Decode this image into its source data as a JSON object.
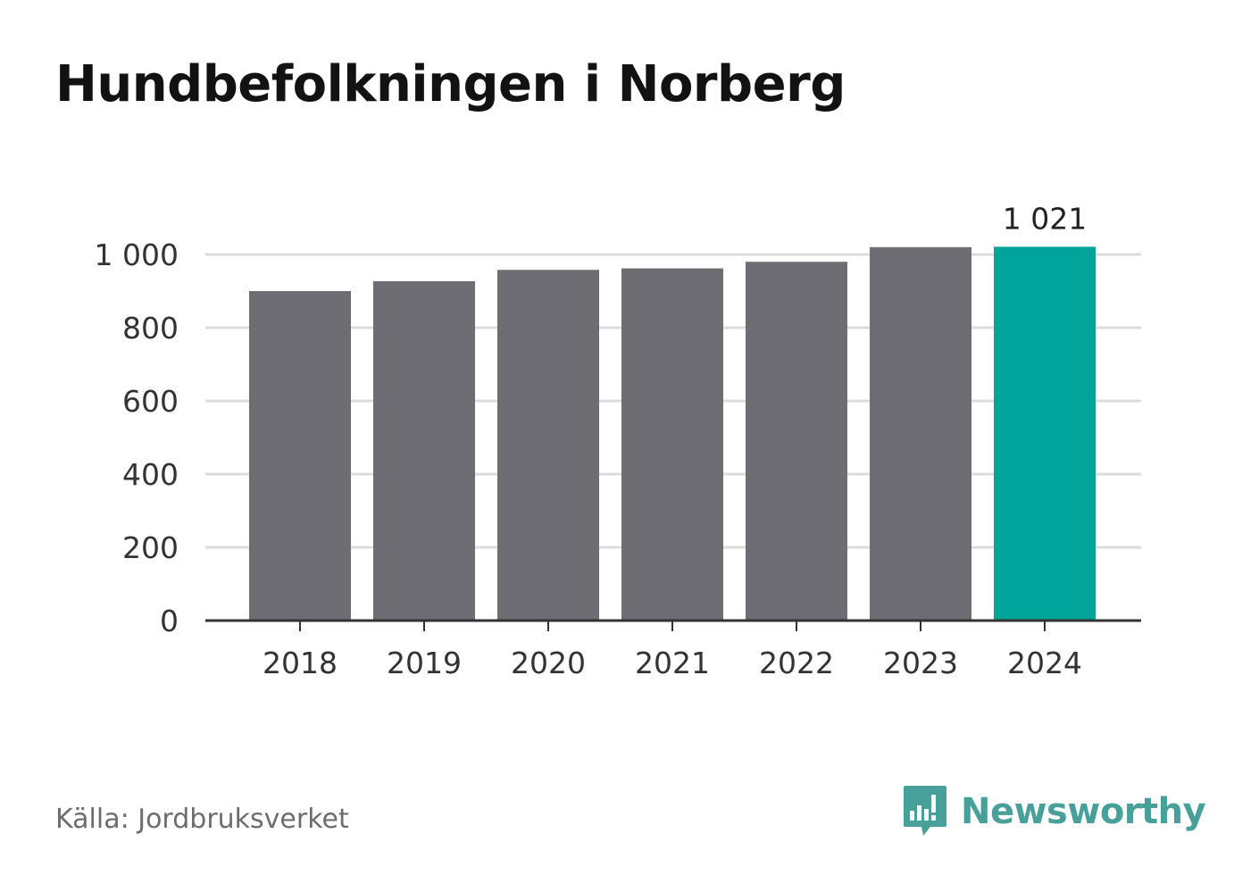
{
  "title": "Hundbefolkningen i Norberg",
  "source": "Källa: Jordbruksverket",
  "brand": {
    "name": "Newsworthy",
    "icon": "newsworthy-logo-icon",
    "color": "#47a09a"
  },
  "colors": {
    "bar": "#6e6d74",
    "highlight": "#00a499",
    "grid": "#dcdcdc",
    "axis": "#333333",
    "text": "#333333"
  },
  "chart_data": {
    "type": "bar",
    "categories": [
      "2018",
      "2019",
      "2020",
      "2021",
      "2022",
      "2023",
      "2024"
    ],
    "values": [
      900,
      927,
      958,
      962,
      980,
      1020,
      1021
    ],
    "highlight_index": 6,
    "data_labels": [
      {
        "index": 6,
        "text": "1 021"
      }
    ],
    "y_ticks": [
      0,
      200,
      400,
      600,
      800,
      1000
    ],
    "y_tick_labels": [
      "0",
      "200",
      "400",
      "600",
      "800",
      "1 000"
    ],
    "ylim": [
      0,
      1000
    ],
    "grid": true,
    "xlabel": "",
    "ylabel": ""
  }
}
